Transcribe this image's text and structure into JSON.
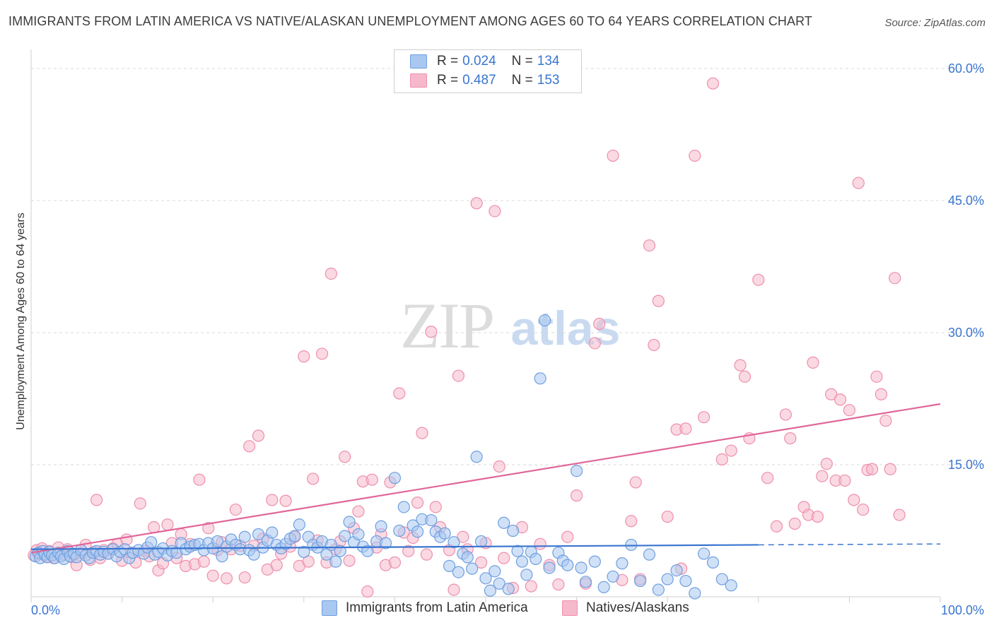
{
  "title": "IMMIGRANTS FROM LATIN AMERICA VS NATIVE/ALASKAN UNEMPLOYMENT AMONG AGES 60 TO 64 YEARS CORRELATION CHART",
  "source": "Source: ZipAtlas.com",
  "watermark": {
    "zip": "ZIP",
    "atlas": "atlas"
  },
  "legend": {
    "r_label": "R =",
    "n_label": "N =",
    "rows": [
      {
        "r": "0.024",
        "n": "134"
      },
      {
        "r": "0.487",
        "n": "153"
      }
    ]
  },
  "colors": {
    "blue_fill": "#a9c8f0",
    "blue_stroke": "#6e9fe0",
    "blue_line": "#3a75d0",
    "pink_fill": "#f6b9cc",
    "pink_stroke": "#ee8fac",
    "pink_line": "#e0669a",
    "tick_label": "#3a75d0",
    "grid": "#d9d9d9"
  },
  "chart_data": {
    "type": "scatter",
    "title": "IMMIGRANTS FROM LATIN AMERICA VS NATIVE/ALASKAN UNEMPLOYMENT AMONG AGES 60 TO 64 YEARS CORRELATION CHART",
    "xlabel": "",
    "ylabel": "Unemployment Among Ages 60 to 64 years",
    "xlim": [
      0,
      100
    ],
    "ylim": [
      0,
      63
    ],
    "x_tick_labels": [
      "0.0%",
      "100.0%"
    ],
    "y_ticks": [
      15,
      30,
      45,
      60
    ],
    "y_tick_labels": [
      "15.0%",
      "30.0%",
      "45.0%",
      "60.0%"
    ],
    "grid": true,
    "legend_position": "top-center",
    "series": [
      {
        "name": "Immigrants from Latin America",
        "r": 0.024,
        "n": 134,
        "trend": {
          "x0": 0,
          "y0": 5.4,
          "x1": 80,
          "y1": 5.9,
          "dashed_to": 100,
          "dashed_y": 6.0
        },
        "points": [
          [
            0.5,
            4.6
          ],
          [
            0.8,
            5.0
          ],
          [
            1.0,
            4.4
          ],
          [
            1.3,
            5.2
          ],
          [
            1.5,
            4.8
          ],
          [
            1.8,
            4.5
          ],
          [
            2.0,
            5.1
          ],
          [
            2.3,
            4.7
          ],
          [
            2.6,
            4.4
          ],
          [
            3.0,
            5.0
          ],
          [
            3.3,
            4.6
          ],
          [
            3.6,
            4.3
          ],
          [
            4.0,
            5.2
          ],
          [
            4.3,
            4.6
          ],
          [
            4.7,
            4.9
          ],
          [
            5.0,
            4.5
          ],
          [
            5.5,
            5.3
          ],
          [
            6.0,
            4.7
          ],
          [
            6.4,
            4.4
          ],
          [
            6.8,
            5.0
          ],
          [
            7.2,
            5.2
          ],
          [
            7.6,
            4.8
          ],
          [
            8.0,
            5.1
          ],
          [
            8.5,
            4.9
          ],
          [
            9.0,
            5.4
          ],
          [
            9.4,
            4.6
          ],
          [
            9.8,
            5.1
          ],
          [
            10.3,
            5.4
          ],
          [
            10.8,
            4.4
          ],
          [
            11.2,
            5.0
          ],
          [
            11.8,
            5.3
          ],
          [
            12.4,
            4.9
          ],
          [
            12.8,
            5.6
          ],
          [
            13.2,
            6.2
          ],
          [
            13.6,
            4.8
          ],
          [
            14.0,
            5.1
          ],
          [
            14.5,
            5.5
          ],
          [
            15.0,
            4.7
          ],
          [
            15.5,
            5.2
          ],
          [
            16.0,
            5.0
          ],
          [
            16.5,
            6.1
          ],
          [
            17.0,
            5.4
          ],
          [
            17.5,
            5.7
          ],
          [
            18.0,
            5.9
          ],
          [
            18.5,
            6.0
          ],
          [
            19.0,
            5.3
          ],
          [
            19.5,
            6.1
          ],
          [
            20.0,
            5.5
          ],
          [
            20.5,
            6.3
          ],
          [
            21.0,
            4.6
          ],
          [
            21.5,
            5.7
          ],
          [
            22.0,
            6.5
          ],
          [
            22.5,
            5.9
          ],
          [
            23.0,
            5.4
          ],
          [
            23.5,
            6.8
          ],
          [
            24.0,
            5.3
          ],
          [
            24.5,
            4.8
          ],
          [
            25.0,
            7.1
          ],
          [
            25.5,
            5.6
          ],
          [
            26.0,
            6.4
          ],
          [
            26.5,
            7.3
          ],
          [
            27.0,
            5.9
          ],
          [
            27.5,
            5.5
          ],
          [
            28.0,
            6.0
          ],
          [
            28.5,
            6.6
          ],
          [
            29.0,
            6.9
          ],
          [
            29.5,
            8.2
          ],
          [
            30.0,
            5.1
          ],
          [
            30.5,
            6.8
          ],
          [
            31.0,
            5.9
          ],
          [
            31.5,
            5.6
          ],
          [
            32.0,
            6.3
          ],
          [
            32.5,
            4.8
          ],
          [
            33.0,
            5.9
          ],
          [
            33.5,
            4.0
          ],
          [
            34.0,
            5.2
          ],
          [
            34.5,
            6.9
          ],
          [
            35.0,
            8.5
          ],
          [
            35.5,
            6.2
          ],
          [
            36.0,
            7.1
          ],
          [
            36.5,
            5.7
          ],
          [
            37.0,
            5.2
          ],
          [
            38.0,
            6.3
          ],
          [
            38.5,
            8.0
          ],
          [
            39.0,
            6.1
          ],
          [
            40.0,
            13.5
          ],
          [
            40.5,
            7.5
          ],
          [
            41.0,
            10.2
          ],
          [
            42.0,
            8.1
          ],
          [
            42.5,
            7.4
          ],
          [
            43.0,
            8.8
          ],
          [
            44.0,
            8.7
          ],
          [
            44.5,
            7.4
          ],
          [
            45.0,
            6.8
          ],
          [
            45.5,
            7.2
          ],
          [
            46.0,
            3.5
          ],
          [
            46.5,
            6.2
          ],
          [
            47.0,
            2.8
          ],
          [
            47.5,
            4.9
          ],
          [
            48.0,
            4.5
          ],
          [
            48.5,
            3.2
          ],
          [
            49.0,
            15.9
          ],
          [
            49.5,
            6.3
          ],
          [
            50.0,
            2.1
          ],
          [
            50.5,
            0.7
          ],
          [
            51.0,
            2.9
          ],
          [
            51.5,
            1.5
          ],
          [
            52.0,
            8.4
          ],
          [
            52.5,
            0.9
          ],
          [
            53.0,
            7.5
          ],
          [
            53.5,
            5.2
          ],
          [
            54.0,
            4.0
          ],
          [
            54.5,
            2.5
          ],
          [
            55.0,
            5.1
          ],
          [
            55.5,
            4.3
          ],
          [
            56.0,
            24.8
          ],
          [
            56.5,
            31.4
          ],
          [
            57.0,
            3.3
          ],
          [
            58.0,
            5.0
          ],
          [
            58.5,
            4.1
          ],
          [
            59.0,
            3.6
          ],
          [
            60.0,
            14.3
          ],
          [
            60.5,
            3.3
          ],
          [
            61.0,
            1.7
          ],
          [
            62.0,
            4.0
          ],
          [
            63.0,
            1.1
          ],
          [
            64.0,
            2.3
          ],
          [
            65.0,
            3.8
          ],
          [
            66.0,
            5.9
          ],
          [
            67.0,
            1.8
          ],
          [
            68.0,
            4.8
          ],
          [
            69.0,
            0.8
          ],
          [
            70.0,
            2.0
          ],
          [
            71.0,
            3.0
          ],
          [
            72.0,
            1.8
          ],
          [
            73.0,
            0.4
          ],
          [
            74.0,
            4.9
          ],
          [
            75.0,
            3.9
          ],
          [
            76.0,
            2.0
          ],
          [
            77.0,
            1.3
          ]
        ]
      },
      {
        "name": "Natives/Alaskans",
        "r": 0.487,
        "n": 153,
        "trend": {
          "x0": 0,
          "y0": 5.0,
          "x1": 100,
          "y1": 21.9
        },
        "points": [
          [
            0.3,
            4.7
          ],
          [
            0.6,
            5.3
          ],
          [
            0.9,
            4.9
          ],
          [
            1.2,
            5.5
          ],
          [
            1.6,
            4.6
          ],
          [
            2.0,
            5.2
          ],
          [
            2.5,
            4.4
          ],
          [
            3.0,
            5.6
          ],
          [
            3.5,
            4.8
          ],
          [
            4.0,
            5.4
          ],
          [
            4.5,
            4.5
          ],
          [
            5.0,
            3.6
          ],
          [
            5.5,
            5.0
          ],
          [
            6.0,
            5.9
          ],
          [
            6.5,
            4.2
          ],
          [
            7.0,
            5.1
          ],
          [
            7.2,
            11.0
          ],
          [
            7.6,
            4.4
          ],
          [
            8.0,
            5.3
          ],
          [
            8.5,
            4.9
          ],
          [
            9.0,
            5.5
          ],
          [
            9.5,
            6.0
          ],
          [
            10.0,
            4.1
          ],
          [
            10.5,
            6.5
          ],
          [
            11.0,
            5.0
          ],
          [
            11.5,
            3.9
          ],
          [
            12.0,
            10.6
          ],
          [
            12.5,
            5.2
          ],
          [
            13.0,
            4.6
          ],
          [
            13.5,
            7.9
          ],
          [
            14.0,
            3.0
          ],
          [
            14.5,
            3.8
          ],
          [
            15.0,
            8.2
          ],
          [
            15.5,
            6.1
          ],
          [
            16.0,
            4.4
          ],
          [
            16.5,
            7.1
          ],
          [
            17.0,
            3.5
          ],
          [
            17.5,
            6.0
          ],
          [
            18.0,
            3.7
          ],
          [
            18.5,
            13.3
          ],
          [
            19.0,
            4.0
          ],
          [
            19.5,
            7.8
          ],
          [
            20.0,
            2.4
          ],
          [
            20.5,
            5.3
          ],
          [
            21.0,
            6.2
          ],
          [
            21.5,
            2.1
          ],
          [
            22.0,
            5.4
          ],
          [
            22.5,
            9.9
          ],
          [
            23.0,
            5.8
          ],
          [
            23.5,
            2.2
          ],
          [
            24.0,
            17.1
          ],
          [
            24.5,
            5.8
          ],
          [
            25.0,
            18.3
          ],
          [
            25.5,
            6.6
          ],
          [
            26.0,
            3.1
          ],
          [
            26.5,
            11.0
          ],
          [
            27.0,
            3.6
          ],
          [
            27.5,
            4.9
          ],
          [
            28.0,
            10.9
          ],
          [
            28.5,
            5.7
          ],
          [
            29.0,
            6.8
          ],
          [
            29.5,
            3.5
          ],
          [
            30.0,
            27.3
          ],
          [
            30.5,
            4.0
          ],
          [
            31.0,
            13.4
          ],
          [
            31.5,
            6.4
          ],
          [
            32.0,
            27.6
          ],
          [
            32.5,
            3.9
          ],
          [
            33.0,
            36.7
          ],
          [
            33.5,
            5.4
          ],
          [
            34.0,
            6.3
          ],
          [
            34.5,
            15.9
          ],
          [
            35.0,
            4.1
          ],
          [
            35.5,
            7.8
          ],
          [
            36.0,
            9.7
          ],
          [
            36.5,
            13.1
          ],
          [
            37.0,
            0.6
          ],
          [
            37.5,
            13.3
          ],
          [
            38.0,
            5.6
          ],
          [
            38.5,
            7.1
          ],
          [
            39.0,
            3.6
          ],
          [
            39.5,
            13.0
          ],
          [
            40.0,
            3.9
          ],
          [
            40.5,
            23.1
          ],
          [
            41.0,
            7.3
          ],
          [
            41.5,
            5.2
          ],
          [
            42.0,
            6.7
          ],
          [
            42.5,
            10.7
          ],
          [
            43.0,
            18.6
          ],
          [
            43.5,
            4.8
          ],
          [
            44.0,
            30.1
          ],
          [
            44.5,
            10.2
          ],
          [
            45.0,
            7.9
          ],
          [
            46.0,
            5.3
          ],
          [
            46.5,
            0.8
          ],
          [
            47.0,
            25.1
          ],
          [
            47.5,
            6.8
          ],
          [
            48.0,
            5.4
          ],
          [
            49.0,
            44.7
          ],
          [
            49.5,
            3.9
          ],
          [
            50.0,
            6.1
          ],
          [
            51.0,
            43.8
          ],
          [
            51.5,
            14.8
          ],
          [
            52.0,
            4.4
          ],
          [
            53.0,
            1.0
          ],
          [
            54.0,
            7.9
          ],
          [
            55.0,
            1.2
          ],
          [
            56.0,
            6.0
          ],
          [
            57.0,
            3.6
          ],
          [
            58.0,
            1.4
          ],
          [
            59.0,
            6.8
          ],
          [
            60.0,
            11.5
          ],
          [
            61.0,
            1.5
          ],
          [
            62.0,
            28.8
          ],
          [
            62.5,
            31.0
          ],
          [
            64.0,
            50.1
          ],
          [
            65.0,
            1.9
          ],
          [
            66.0,
            8.6
          ],
          [
            66.5,
            13.0
          ],
          [
            67.0,
            2.0
          ],
          [
            68.0,
            39.9
          ],
          [
            68.5,
            28.6
          ],
          [
            69.0,
            33.6
          ],
          [
            70.0,
            9.1
          ],
          [
            71.0,
            19.0
          ],
          [
            71.5,
            3.2
          ],
          [
            72.0,
            19.1
          ],
          [
            73.0,
            50.1
          ],
          [
            74.0,
            20.4
          ],
          [
            75.0,
            58.3
          ],
          [
            76.0,
            15.6
          ],
          [
            77.0,
            16.6
          ],
          [
            78.0,
            26.3
          ],
          [
            78.5,
            25.0
          ],
          [
            79.0,
            18.0
          ],
          [
            80.0,
            36.0
          ],
          [
            81.0,
            13.5
          ],
          [
            82.0,
            8.0
          ],
          [
            83.0,
            20.7
          ],
          [
            83.5,
            18.0
          ],
          [
            84.0,
            8.3
          ],
          [
            85.0,
            10.2
          ],
          [
            85.5,
            9.3
          ],
          [
            86.0,
            26.6
          ],
          [
            86.5,
            9.1
          ],
          [
            87.0,
            13.7
          ],
          [
            87.5,
            15.1
          ],
          [
            88.0,
            23.0
          ],
          [
            88.5,
            13.2
          ],
          [
            89.0,
            22.4
          ],
          [
            89.5,
            13.2
          ],
          [
            90.0,
            21.2
          ],
          [
            90.5,
            11.0
          ],
          [
            91.0,
            47.0
          ],
          [
            91.5,
            9.9
          ],
          [
            92.0,
            14.4
          ],
          [
            92.5,
            14.5
          ],
          [
            93.0,
            25.0
          ],
          [
            93.5,
            23.0
          ],
          [
            94.0,
            20.0
          ],
          [
            94.5,
            14.5
          ],
          [
            95.0,
            36.2
          ],
          [
            95.5,
            9.3
          ]
        ]
      }
    ]
  }
}
